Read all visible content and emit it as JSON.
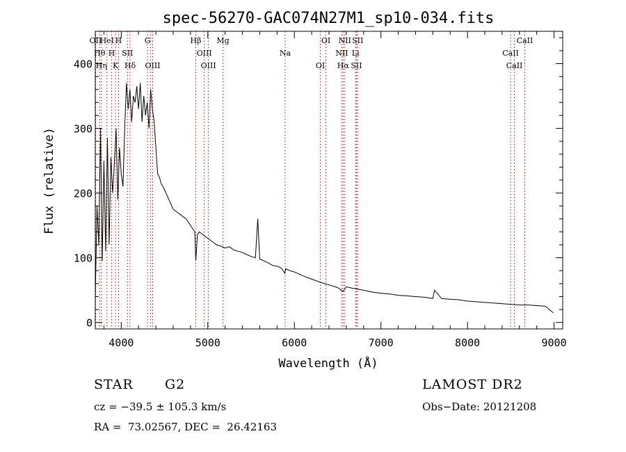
{
  "chart_data": {
    "type": "line",
    "title": "spec-56270-GAC074N27M1_sp10-034.fits",
    "xlabel": "Wavelength (Å)",
    "ylabel": "Flux (relative)",
    "xlim": [
      3700,
      9100
    ],
    "ylim": [
      -10,
      450
    ],
    "xticks": [
      4000,
      5000,
      6000,
      7000,
      8000,
      9000
    ],
    "yticks": [
      0,
      100,
      200,
      300,
      400
    ],
    "line_color": "#000000",
    "marker_color": "#cc0000",
    "series": [
      {
        "x": [
          3700,
          3720,
          3740,
          3760,
          3780,
          3800,
          3820,
          3840,
          3860,
          3880,
          3900,
          3920,
          3940,
          3960,
          3980,
          4000,
          4020,
          4040,
          4060,
          4080,
          4100,
          4120,
          4140,
          4160,
          4180,
          4200,
          4220,
          4240,
          4260,
          4280,
          4300,
          4320,
          4340,
          4360,
          4380,
          4400,
          4420,
          4440,
          4460,
          4480,
          4500,
          4550,
          4600,
          4650,
          4700,
          4750,
          4800,
          4850,
          4861,
          4880,
          4900,
          4950,
          5000,
          5050,
          5100,
          5150,
          5200,
          5250,
          5300,
          5350,
          5400,
          5450,
          5500,
          5550,
          5577,
          5600,
          5650,
          5700,
          5750,
          5800,
          5850,
          5890,
          5900,
          5950,
          6000,
          6100,
          6200,
          6300,
          6400,
          6500,
          6563,
          6600,
          6700,
          6800,
          6900,
          7000,
          7100,
          7200,
          7300,
          7400,
          7500,
          7600,
          7620,
          7700,
          7800,
          7900,
          8000,
          8100,
          8200,
          8300,
          8400,
          8500,
          8600,
          8700,
          8800,
          8900,
          8990
        ],
        "y": [
          40,
          180,
          120,
          300,
          95,
          250,
          110,
          285,
          120,
          255,
          200,
          245,
          300,
          190,
          270,
          230,
          210,
          300,
          370,
          330,
          360,
          310,
          350,
          340,
          365,
          330,
          370,
          310,
          350,
          320,
          340,
          300,
          360,
          330,
          310,
          270,
          230,
          225,
          215,
          210,
          205,
          190,
          175,
          170,
          165,
          160,
          150,
          140,
          95,
          135,
          140,
          135,
          130,
          125,
          120,
          118,
          115,
          117,
          112,
          110,
          108,
          105,
          102,
          100,
          160,
          98,
          95,
          92,
          88,
          87,
          84,
          76,
          83,
          80,
          78,
          72,
          67,
          62,
          58,
          54,
          48,
          55,
          52,
          50,
          47,
          45,
          44,
          42,
          41,
          40,
          39,
          37,
          50,
          37,
          36,
          35,
          33,
          32,
          31,
          30,
          29,
          28,
          27,
          27,
          26,
          25,
          15
        ]
      }
    ],
    "lines": [
      {
        "wl": 3704,
        "label": "OII"
      },
      {
        "wl": 3750,
        "label": "Hθ"
      },
      {
        "wl": 3771,
        "label": "Hη"
      },
      {
        "wl": 3835,
        "label": "HeI"
      },
      {
        "wl": 3889,
        "label": "H"
      },
      {
        "wl": 3934,
        "label": "K"
      },
      {
        "wl": 3969,
        "label": "H"
      },
      {
        "wl": 4072,
        "label": "SII"
      },
      {
        "wl": 4102,
        "label": "Hδ"
      },
      {
        "wl": 4304,
        "label": "G"
      },
      {
        "wl": 4340,
        "label": ""
      },
      {
        "wl": 4363,
        "label": "OIII"
      },
      {
        "wl": 4861,
        "label": "Hβ"
      },
      {
        "wl": 4959,
        "label": "OIII"
      },
      {
        "wl": 5007,
        "label": "OIII"
      },
      {
        "wl": 5175,
        "label": "Mg"
      },
      {
        "wl": 5893,
        "label": "Na"
      },
      {
        "wl": 6300,
        "label": "OI"
      },
      {
        "wl": 6364,
        "label": "OI"
      },
      {
        "wl": 6548,
        "label": "NII"
      },
      {
        "wl": 6563,
        "label": "Hα"
      },
      {
        "wl": 6583,
        "label": "NII"
      },
      {
        "wl": 6707,
        "label": "Li"
      },
      {
        "wl": 6717,
        "label": "SII"
      },
      {
        "wl": 6731,
        "label": "SII"
      },
      {
        "wl": 8498,
        "label": "CaII"
      },
      {
        "wl": 8542,
        "label": "CaII"
      },
      {
        "wl": 8662,
        "label": "CaII"
      }
    ]
  },
  "info": {
    "class": "STAR",
    "subclass": "G2",
    "survey": "LAMOST DR2",
    "cz": "cz = −39.5 ± 105.3 km/s",
    "obs_date": "Obs−Date: 20121208",
    "coords": "RA =  73.02567, DEC =  26.42163"
  }
}
